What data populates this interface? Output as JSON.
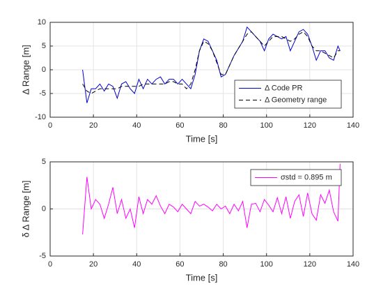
{
  "chart_data": [
    {
      "type": "line",
      "ylabel": "Δ Range [m]",
      "xlabel": "Time [s]",
      "x": [
        15,
        17,
        19,
        21,
        23,
        25,
        27,
        29,
        31,
        33,
        35,
        37,
        39,
        41,
        43,
        45,
        47,
        49,
        51,
        53,
        55,
        57,
        59,
        61,
        63,
        65,
        67,
        69,
        71,
        73,
        75,
        77,
        79,
        81,
        83,
        85,
        87,
        89,
        91,
        93,
        95,
        97,
        99,
        101,
        103,
        105,
        107,
        109,
        111,
        113,
        115,
        117,
        119,
        121,
        123,
        125,
        127,
        129,
        131,
        133,
        134
      ],
      "series": [
        {
          "name": "Δ Code PR",
          "color": "#0000cd",
          "linestyle": "solid",
          "values": [
            0,
            -7,
            -4,
            -4,
            -3,
            -4.5,
            -3,
            -3.5,
            -6,
            -3,
            -2.5,
            -4,
            -5,
            -2,
            -4,
            -2,
            -3,
            -2,
            -1.5,
            -3,
            -2,
            -2,
            -3,
            -2,
            -3,
            -4,
            -1,
            4,
            6.5,
            6,
            4,
            2,
            -1.5,
            -1,
            1,
            3,
            4.5,
            6,
            9,
            8,
            7,
            6,
            4,
            6.5,
            7.5,
            7,
            6.5,
            7,
            4,
            6,
            8,
            8.5,
            7.5,
            5,
            2,
            4,
            4,
            2.5,
            2,
            5,
            4
          ]
        },
        {
          "name": "Δ Geometry range",
          "color": "#000000",
          "linestyle": "dashed",
          "values": [
            -3,
            -4.5,
            -5,
            -4.5,
            -4,
            -4,
            -4,
            -4,
            -4,
            -3.5,
            -3.5,
            -3.5,
            -3.5,
            -3.5,
            -3,
            -3,
            -3,
            -3,
            -3,
            -3,
            -2.5,
            -2.5,
            -3,
            -3,
            -4,
            -3,
            0,
            4,
            6,
            5.5,
            4,
            1.5,
            -1,
            -1,
            1,
            3,
            4.5,
            6,
            7.5,
            8,
            7,
            6,
            5,
            6,
            7,
            7,
            7,
            6.5,
            6,
            6.5,
            7.5,
            8,
            7,
            5,
            4,
            4,
            3.5,
            3,
            2.5,
            4,
            4
          ]
        }
      ],
      "xlim": [
        0,
        140
      ],
      "xticks": [
        0,
        20,
        40,
        60,
        80,
        100,
        120,
        140
      ],
      "ylim": [
        -10,
        10
      ],
      "yticks": [
        -10,
        -5,
        0,
        5,
        10
      ],
      "grid": true,
      "legend": "lower right"
    },
    {
      "type": "line",
      "ylabel": "δ Δ Range [m]",
      "xlabel": "Time [s]",
      "x": [
        15,
        17,
        19,
        21,
        23,
        25,
        27,
        29,
        31,
        33,
        35,
        37,
        39,
        41,
        43,
        45,
        47,
        49,
        51,
        53,
        55,
        57,
        59,
        61,
        63,
        65,
        67,
        69,
        71,
        73,
        75,
        77,
        79,
        81,
        83,
        85,
        87,
        89,
        91,
        93,
        95,
        97,
        99,
        101,
        103,
        105,
        107,
        109,
        111,
        113,
        115,
        117,
        119,
        121,
        123,
        125,
        127,
        129,
        131,
        133,
        134
      ],
      "series": [
        {
          "name": "σstd = 0.895 m",
          "color": "#ff00ff",
          "linestyle": "solid",
          "values": [
            -2.7,
            3.4,
            0,
            1,
            0.5,
            -1,
            0.5,
            2.3,
            -0.5,
            1,
            -1,
            0,
            -2,
            1.3,
            -0.5,
            1,
            0.5,
            1.4,
            0.3,
            -0.5,
            0.5,
            0.2,
            -0.3,
            0.5,
            0,
            -0.5,
            0.8,
            0.3,
            0.5,
            0.2,
            -0.2,
            0.5,
            0,
            0.3,
            -0.5,
            0.5,
            -0.2,
            0.8,
            -2,
            0.5,
            0.6,
            -0.3,
            1,
            0.4,
            -0.3,
            1.2,
            -0.5,
            1.3,
            -1,
            0.8,
            1.5,
            -0.8,
            1.7,
            -0.5,
            -1.2,
            1.5,
            0.6,
            2,
            -0.3,
            -1.3,
            4.8
          ]
        }
      ],
      "xlim": [
        0,
        140
      ],
      "xticks": [
        0,
        20,
        40,
        60,
        80,
        100,
        120,
        140
      ],
      "ylim": [
        -5,
        5
      ],
      "yticks": [
        -5,
        0,
        5
      ],
      "grid": true,
      "legend": "upper right"
    }
  ]
}
